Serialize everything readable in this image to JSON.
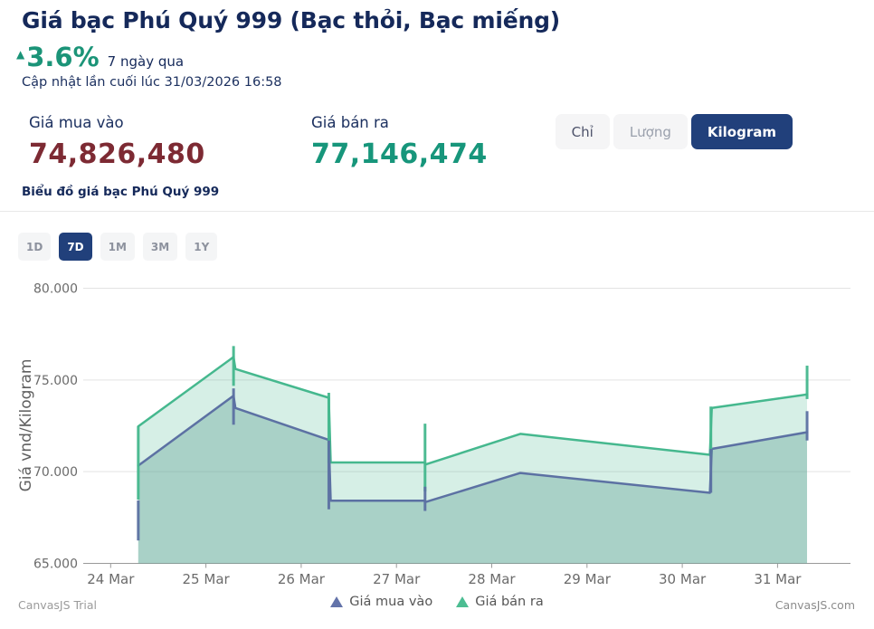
{
  "header": {
    "title": "Giá bạc Phú Quý 999 (Bạc thỏi, Bạc miếng)",
    "change": {
      "arrow": "▲",
      "percent": "3.6%",
      "period": "7 ngày qua"
    },
    "last_updated": "Cập nhật lần cuối lúc 31/03/2026 16:58"
  },
  "prices": {
    "buy": {
      "label": "Giá mua vào",
      "value": "74,826,480",
      "color": "#7d2a33"
    },
    "sell": {
      "label": "Giá bán ra",
      "value": "77,146,474",
      "color": "#17967b"
    }
  },
  "unit_tabs": [
    {
      "label": "Chỉ",
      "active": false
    },
    {
      "label": "Lượng",
      "active": false
    },
    {
      "label": "Kilogram",
      "active": true
    }
  ],
  "chart_section": {
    "title": "Biểu đồ giá bạc Phú Quý 999"
  },
  "range_tabs": [
    {
      "label": "1D",
      "active": false
    },
    {
      "label": "7D",
      "active": true
    },
    {
      "label": "1M",
      "active": false
    },
    {
      "label": "3M",
      "active": false
    },
    {
      "label": "1Y",
      "active": false
    }
  ],
  "chart_data": {
    "type": "area",
    "title": "",
    "xlabel": "",
    "ylabel": "Giá vnd/Kilogram",
    "ylim": [
      65000,
      80500
    ],
    "grid": true,
    "legend_position": "bottom-center",
    "yticks": [
      {
        "value": 65000,
        "label": "65.000"
      },
      {
        "value": 70000,
        "label": "70.000"
      },
      {
        "value": 75000,
        "label": "75.000"
      },
      {
        "value": 80000,
        "label": "80.000"
      }
    ],
    "x_axis": {
      "unit": "days since 24 Mar",
      "labels": [
        "24 Mar",
        "25 Mar",
        "26 Mar",
        "27 Mar",
        "28 Mar",
        "29 Mar",
        "30 Mar",
        "31 Mar"
      ]
    },
    "series": [
      {
        "name": "Giá bán ra",
        "line_color": "#45b88e",
        "fill_color": "rgba(69,184,142,0.22)",
        "legend_color": "#4cbd92",
        "points": [
          [
            0.29,
            72470
          ],
          [
            1.29,
            76250
          ],
          [
            1.31,
            75600
          ],
          [
            2.29,
            74030
          ],
          [
            2.31,
            70500
          ],
          [
            3.29,
            70500
          ],
          [
            3.31,
            70400
          ],
          [
            4.3,
            72060
          ],
          [
            6.29,
            70920
          ],
          [
            6.31,
            73470
          ],
          [
            7.31,
            74210
          ]
        ],
        "whiskers": [
          [
            0.29,
            68480,
            72470
          ],
          [
            1.29,
            74680,
            76850
          ],
          [
            2.29,
            70470,
            74300
          ],
          [
            3.3,
            68920,
            72620
          ],
          [
            6.3,
            70830,
            73550
          ],
          [
            7.31,
            73960,
            75780
          ]
        ]
      },
      {
        "name": "Giá mua vào",
        "line_color": "#5c71a3",
        "fill_color": "rgba(98,160,150,0.38)",
        "legend_color": "#6373a9",
        "points": [
          [
            0.29,
            70330
          ],
          [
            1.29,
            74140
          ],
          [
            1.31,
            73470
          ],
          [
            2.29,
            71730
          ],
          [
            2.31,
            68420
          ],
          [
            3.29,
            68420
          ],
          [
            3.31,
            68350
          ],
          [
            4.3,
            69930
          ],
          [
            6.29,
            68850
          ],
          [
            6.31,
            71240
          ],
          [
            7.31,
            72150
          ]
        ],
        "whiskers": [
          [
            0.29,
            66250,
            68430
          ],
          [
            1.29,
            72560,
            74540
          ],
          [
            2.29,
            67950,
            71700
          ],
          [
            3.3,
            67860,
            69180
          ],
          [
            6.3,
            68850,
            71240
          ],
          [
            7.31,
            71700,
            73300
          ]
        ]
      }
    ],
    "watermark_left": "CanvasJS Trial",
    "watermark_right": "CanvasJS.com"
  },
  "legend": [
    {
      "label": "Giá mua vào",
      "color": "#6373a9"
    },
    {
      "label": "Giá bán ra",
      "color": "#4cbd92"
    }
  ]
}
